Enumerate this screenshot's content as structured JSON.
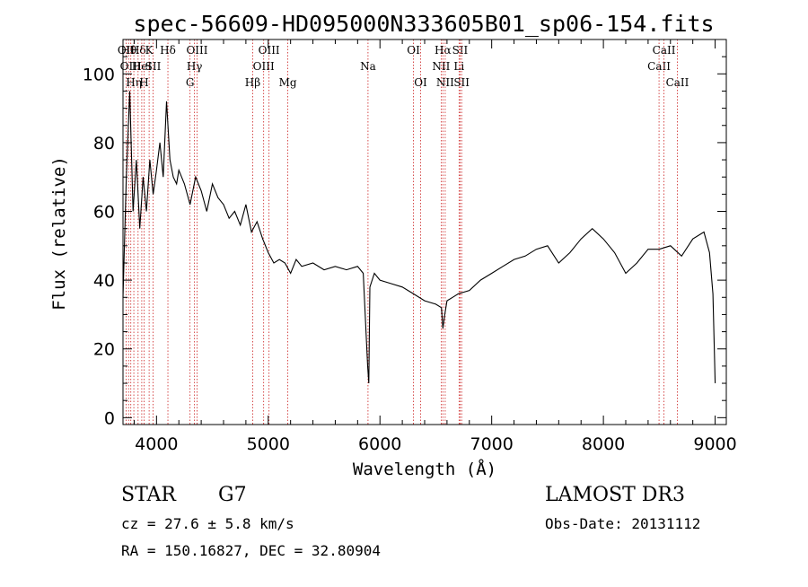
{
  "chart_data": {
    "type": "line",
    "title": "spec-56609-HD095000N333605B01_sp06-154.fits",
    "xlabel": "Wavelength (Å)",
    "ylabel": "Flux (relative)",
    "xlim": [
      3700,
      9100
    ],
    "ylim": [
      -2,
      110
    ],
    "xticks": [
      4000,
      5000,
      6000,
      7000,
      8000,
      9000
    ],
    "yticks": [
      0,
      20,
      40,
      60,
      80,
      100
    ],
    "grid": false,
    "series": [
      {
        "x": [
          3700,
          3730,
          3760,
          3790,
          3820,
          3850,
          3880,
          3910,
          3940,
          3970,
          4000,
          4030,
          4060,
          4090,
          4120,
          4150,
          4180,
          4200,
          4250,
          4300,
          4350,
          4400,
          4450,
          4500,
          4550,
          4600,
          4650,
          4700,
          4750,
          4800,
          4850,
          4900,
          4950,
          5000,
          5050,
          5100,
          5150,
          5200,
          5250,
          5300,
          5400,
          5500,
          5600,
          5700,
          5800,
          5850,
          5890,
          5900,
          5910,
          5950,
          6000,
          6100,
          6200,
          6300,
          6400,
          6500,
          6550,
          6563,
          6580,
          6600,
          6650,
          6700,
          6800,
          6900,
          7000,
          7100,
          7200,
          7300,
          7400,
          7500,
          7600,
          7700,
          7800,
          7900,
          8000,
          8100,
          8200,
          8300,
          8400,
          8500,
          8600,
          8700,
          8800,
          8900,
          8950,
          8980,
          9000
        ],
        "y": [
          35,
          70,
          95,
          60,
          75,
          55,
          70,
          60,
          75,
          65,
          72,
          80,
          70,
          92,
          75,
          70,
          68,
          72,
          68,
          62,
          70,
          66,
          60,
          68,
          64,
          62,
          58,
          60,
          56,
          62,
          54,
          57,
          52,
          48,
          45,
          46,
          45,
          42,
          46,
          44,
          45,
          43,
          44,
          43,
          44,
          42,
          15,
          10,
          38,
          42,
          40,
          39,
          38,
          36,
          34,
          33,
          32,
          26,
          30,
          34,
          35,
          36,
          37,
          40,
          42,
          44,
          46,
          47,
          49,
          50,
          45,
          48,
          52,
          55,
          52,
          48,
          42,
          45,
          49,
          49,
          50,
          47,
          52,
          54,
          48,
          36,
          10
        ]
      }
    ],
    "line_markers": [
      {
        "wavelength": 3728,
        "label": "OII",
        "row": 0
      },
      {
        "wavelength": 3750,
        "label": "Hθ",
        "row": 0
      },
      {
        "wavelength": 3770,
        "label": "OIII",
        "row": 1
      },
      {
        "wavelength": 3797,
        "label": "Hη",
        "row": 2
      },
      {
        "wavelength": 3835,
        "label": "Hδ",
        "row": 0
      },
      {
        "wavelength": 3868,
        "label": "HeI",
        "row": 1
      },
      {
        "wavelength": 3889,
        "label": "H",
        "row": 2
      },
      {
        "wavelength": 3934,
        "label": "K",
        "row": 0
      },
      {
        "wavelength": 3969,
        "label": "SII",
        "row": 1
      },
      {
        "wavelength": 4102,
        "label": "Hδ",
        "row": 0
      },
      {
        "wavelength": 4300,
        "label": "G",
        "row": 2
      },
      {
        "wavelength": 4340,
        "label": "Hγ",
        "row": 1
      },
      {
        "wavelength": 4363,
        "label": "OIII",
        "row": 0
      },
      {
        "wavelength": 4861,
        "label": "Hβ",
        "row": 2
      },
      {
        "wavelength": 4959,
        "label": "OIII",
        "row": 1
      },
      {
        "wavelength": 5007,
        "label": "OIII",
        "row": 0
      },
      {
        "wavelength": 5175,
        "label": "Mg",
        "row": 2
      },
      {
        "wavelength": 5893,
        "label": "Na",
        "row": 1
      },
      {
        "wavelength": 6300,
        "label": "OI",
        "row": 0
      },
      {
        "wavelength": 6364,
        "label": "OI",
        "row": 2
      },
      {
        "wavelength": 6548,
        "label": "NII",
        "row": 1
      },
      {
        "wavelength": 6563,
        "label": "Hα",
        "row": 0
      },
      {
        "wavelength": 6584,
        "label": "NII",
        "row": 2
      },
      {
        "wavelength": 6708,
        "label": "Li",
        "row": 1
      },
      {
        "wavelength": 6717,
        "label": "SII",
        "row": 0
      },
      {
        "wavelength": 6731,
        "label": "SII",
        "row": 2
      },
      {
        "wavelength": 8498,
        "label": "CaII",
        "row": 1
      },
      {
        "wavelength": 8542,
        "label": "CaII",
        "row": 0
      },
      {
        "wavelength": 8662,
        "label": "CaII",
        "row": 2
      }
    ]
  },
  "info": {
    "object_class": "STAR",
    "subclass": "G7",
    "survey": "LAMOST DR3",
    "cz": "cz = 27.6 ± 5.8 km/s",
    "obs_date": "Obs-Date: 20131112",
    "coords": "RA = 150.16827, DEC =  32.80904"
  }
}
